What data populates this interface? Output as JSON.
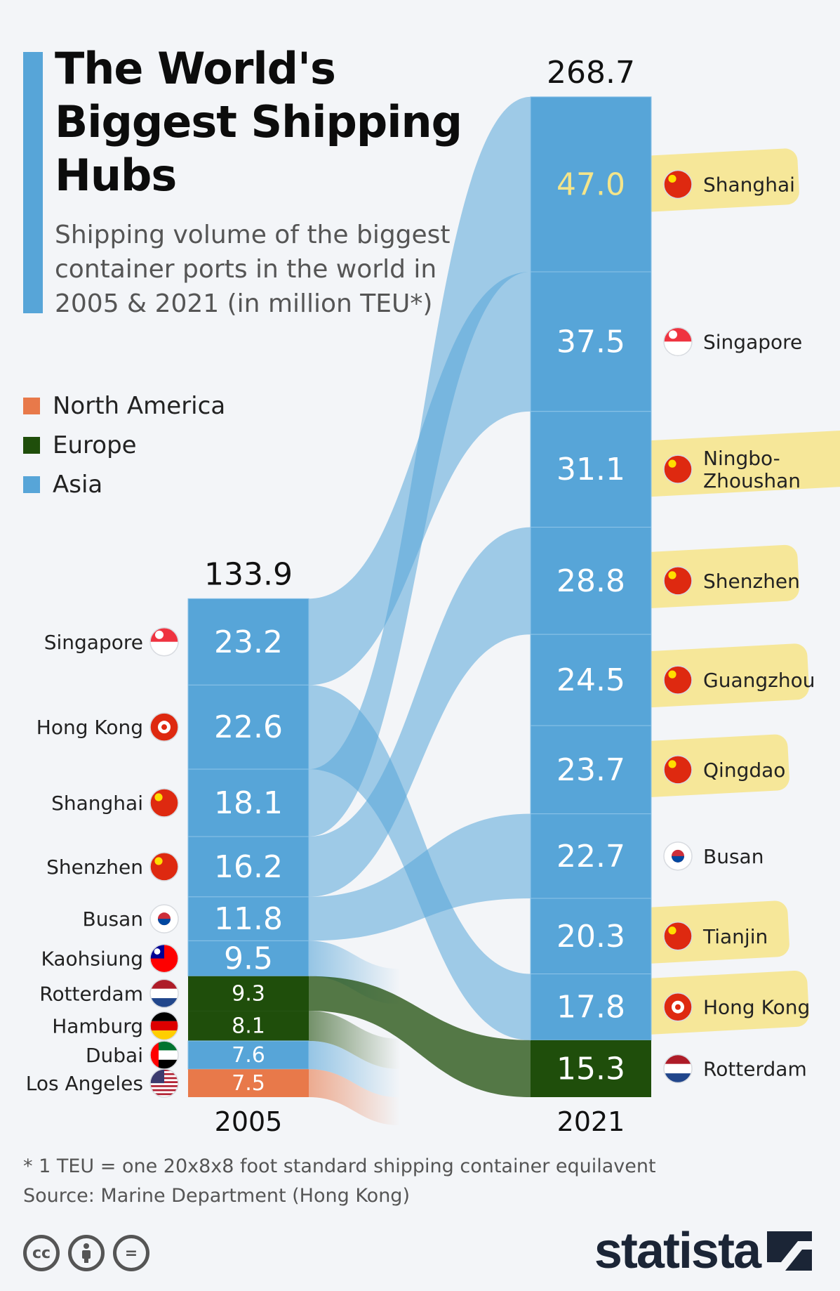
{
  "title": "The World's Biggest Shipping Hubs",
  "subtitle": "Shipping volume of the biggest container ports in the world in 2005 & 2021 (in million TEU*)",
  "legend": [
    {
      "label": "North America",
      "color": "#e8794a"
    },
    {
      "label": "Europe",
      "color": "#1f4e0b"
    },
    {
      "label": "Asia",
      "color": "#57a5d8"
    }
  ],
  "footnote": "* 1 TEU = one 20x8x8 foot standard shipping container equilavent",
  "source": "Source: Marine Department (Hong Kong)",
  "brand": "statista",
  "chart_data": {
    "type": "stacked-bar",
    "unit": "million TEU",
    "colors": {
      "Asia": "#57a5d8",
      "Europe": "#1f4e0b",
      "North America": "#e8794a"
    },
    "columns": [
      {
        "year": "2005",
        "total": "133.9",
        "ports": [
          {
            "name": "Singapore",
            "value": 23.2,
            "label": "23.2",
            "region": "Asia",
            "flag": "singapore-flag"
          },
          {
            "name": "Hong Kong",
            "value": 22.6,
            "label": "22.6",
            "region": "Asia",
            "flag": "hong-kong-flag"
          },
          {
            "name": "Shanghai",
            "value": 18.1,
            "label": "18.1",
            "region": "Asia",
            "flag": "china-flag"
          },
          {
            "name": "Shenzhen",
            "value": 16.2,
            "label": "16.2",
            "region": "Asia",
            "flag": "china-flag"
          },
          {
            "name": "Busan",
            "value": 11.8,
            "label": "11.8",
            "region": "Asia",
            "flag": "south-korea-flag"
          },
          {
            "name": "Kaohsiung",
            "value": 9.5,
            "label": "9.5",
            "region": "Asia",
            "flag": "taiwan-flag"
          },
          {
            "name": "Rotterdam",
            "value": 9.3,
            "label": "9.3",
            "region": "Europe",
            "flag": "netherlands-flag"
          },
          {
            "name": "Hamburg",
            "value": 8.1,
            "label": "8.1",
            "region": "Europe",
            "flag": "germany-flag"
          },
          {
            "name": "Dubai",
            "value": 7.6,
            "label": "7.6",
            "region": "Asia",
            "flag": "uae-flag"
          },
          {
            "name": "Los Angeles",
            "value": 7.5,
            "label": "7.5",
            "region": "North America",
            "flag": "usa-flag"
          }
        ]
      },
      {
        "year": "2021",
        "total": "268.7",
        "ports": [
          {
            "name": "Shanghai",
            "value": 47.0,
            "label": "47.0",
            "region": "Asia",
            "flag": "china-flag"
          },
          {
            "name": "Singapore",
            "value": 37.5,
            "label": "37.5",
            "region": "Asia",
            "flag": "singapore-flag"
          },
          {
            "name": "Ningbo-Zhoushan",
            "value": 31.1,
            "label": "31.1",
            "region": "Asia",
            "flag": "china-flag"
          },
          {
            "name": "Shenzhen",
            "value": 28.8,
            "label": "28.8",
            "region": "Asia",
            "flag": "china-flag"
          },
          {
            "name": "Guangzhou",
            "value": 24.5,
            "label": "24.5",
            "region": "Asia",
            "flag": "china-flag"
          },
          {
            "name": "Qingdao",
            "value": 23.7,
            "label": "23.7",
            "region": "Asia",
            "flag": "china-flag"
          },
          {
            "name": "Busan",
            "value": 22.7,
            "label": "22.7",
            "region": "Asia",
            "flag": "south-korea-flag"
          },
          {
            "name": "Tianjin",
            "value": 20.3,
            "label": "20.3",
            "region": "Asia",
            "flag": "china-flag"
          },
          {
            "name": "Hong Kong",
            "value": 17.8,
            "label": "17.8",
            "region": "Asia",
            "flag": "hong-kong-flag"
          },
          {
            "name": "Rotterdam",
            "value": 15.3,
            "label": "15.3",
            "region": "Europe",
            "flag": "netherlands-flag"
          }
        ]
      }
    ],
    "links": [
      {
        "from": "Singapore",
        "to": "Singapore"
      },
      {
        "from": "Hong Kong",
        "to": "Hong Kong"
      },
      {
        "from": "Shanghai",
        "to": "Shanghai"
      },
      {
        "from": "Shenzhen",
        "to": "Shenzhen"
      },
      {
        "from": "Busan",
        "to": "Busan"
      },
      {
        "from": "Rotterdam",
        "to": "Rotterdam"
      }
    ],
    "fading_links": [
      "Kaohsiung",
      "Hamburg",
      "Dubai",
      "Los Angeles"
    ],
    "highlighted_2021": [
      "Shanghai",
      "Ningbo-Zhoushan",
      "Shenzhen",
      "Guangzhou",
      "Qingdao",
      "Tianjin",
      "Hong Kong"
    ],
    "highlight_color": "#f7e27a"
  }
}
